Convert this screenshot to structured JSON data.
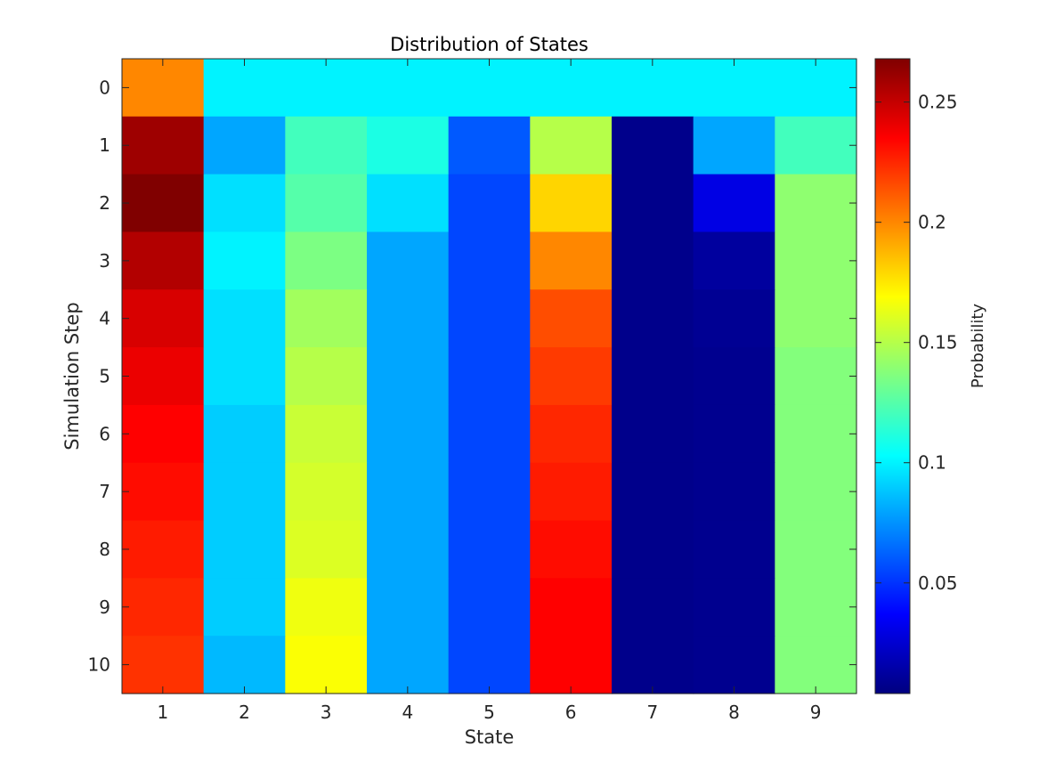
{
  "chart_data": {
    "type": "heatmap",
    "title": "Distribution of States",
    "xlabel": "State",
    "ylabel": "Simulation Step",
    "colorbar_label": "Probability",
    "colormap": "jet",
    "clim": [
      0.004,
      0.268
    ],
    "colorbar_ticks": [
      0.05,
      0.1,
      0.15,
      0.2,
      0.25
    ],
    "colorbar_tick_labels": [
      "0.05",
      "0.1",
      "0.15",
      "0.2",
      "0.25"
    ],
    "x_categories": [
      "1",
      "2",
      "3",
      "4",
      "5",
      "6",
      "7",
      "8",
      "9"
    ],
    "y_categories": [
      "0",
      "1",
      "2",
      "3",
      "4",
      "5",
      "6",
      "7",
      "8",
      "9",
      "10"
    ],
    "values": [
      [
        0.2,
        0.1,
        0.1,
        0.1,
        0.1,
        0.1,
        0.1,
        0.1,
        0.1
      ],
      [
        0.26,
        0.08,
        0.12,
        0.11,
        0.06,
        0.15,
        0.007,
        0.08,
        0.12
      ],
      [
        0.268,
        0.095,
        0.125,
        0.095,
        0.055,
        0.18,
        0.007,
        0.03,
        0.14
      ],
      [
        0.255,
        0.1,
        0.135,
        0.08,
        0.055,
        0.2,
        0.007,
        0.012,
        0.14
      ],
      [
        0.245,
        0.095,
        0.145,
        0.08,
        0.055,
        0.215,
        0.007,
        0.009,
        0.14
      ],
      [
        0.24,
        0.095,
        0.15,
        0.08,
        0.055,
        0.22,
        0.007,
        0.008,
        0.137
      ],
      [
        0.235,
        0.09,
        0.155,
        0.08,
        0.055,
        0.225,
        0.007,
        0.008,
        0.137
      ],
      [
        0.232,
        0.09,
        0.158,
        0.08,
        0.055,
        0.228,
        0.007,
        0.008,
        0.137
      ],
      [
        0.228,
        0.09,
        0.16,
        0.08,
        0.055,
        0.232,
        0.007,
        0.008,
        0.137
      ],
      [
        0.225,
        0.09,
        0.165,
        0.08,
        0.055,
        0.235,
        0.007,
        0.008,
        0.137
      ],
      [
        0.222,
        0.085,
        0.168,
        0.08,
        0.055,
        0.235,
        0.007,
        0.008,
        0.137
      ]
    ]
  }
}
